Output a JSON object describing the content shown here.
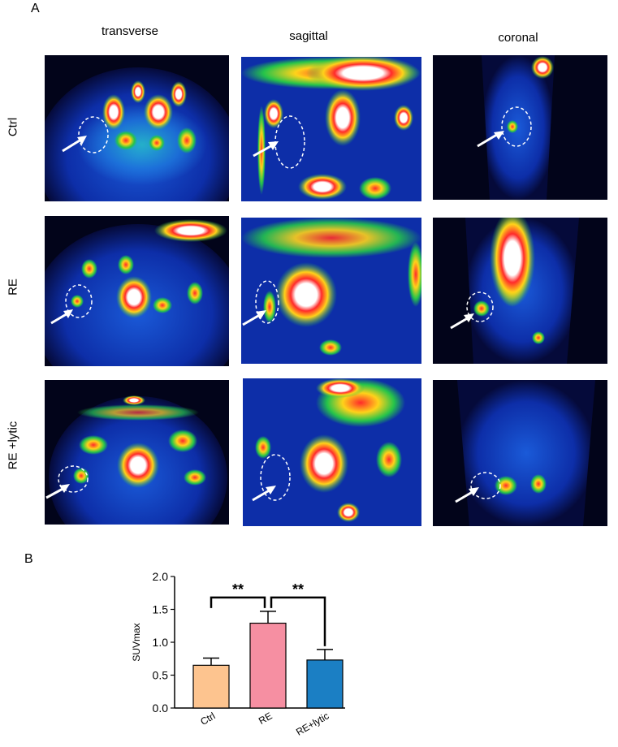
{
  "panel_a": {
    "letter": "A",
    "columns": [
      "transverse",
      "sagittal",
      "coronal"
    ],
    "rows": [
      "Ctrl",
      "RE",
      "RE +lytic"
    ]
  },
  "panel_b": {
    "letter": "B"
  },
  "colors": {
    "ctrl_bar": "#fdc48f",
    "re_bar": "#f68fa2",
    "lytic_bar": "#1b7fc4",
    "pet_background": "#0a1a6e"
  },
  "chart_data": {
    "type": "bar",
    "categories": [
      "Ctrl",
      "RE",
      "RE+lytic"
    ],
    "values": [
      0.65,
      1.29,
      0.73
    ],
    "errors": [
      0.11,
      0.18,
      0.16
    ],
    "ylabel": "SUVmax",
    "ylim": [
      0.0,
      2.0
    ],
    "yticks": [
      "0.0",
      "0.5",
      "1.0",
      "1.5",
      "2.0"
    ],
    "significance": [
      {
        "from": "Ctrl",
        "to": "RE",
        "label": "**"
      },
      {
        "from": "RE",
        "to": "RE+lytic",
        "label": "**"
      }
    ]
  }
}
